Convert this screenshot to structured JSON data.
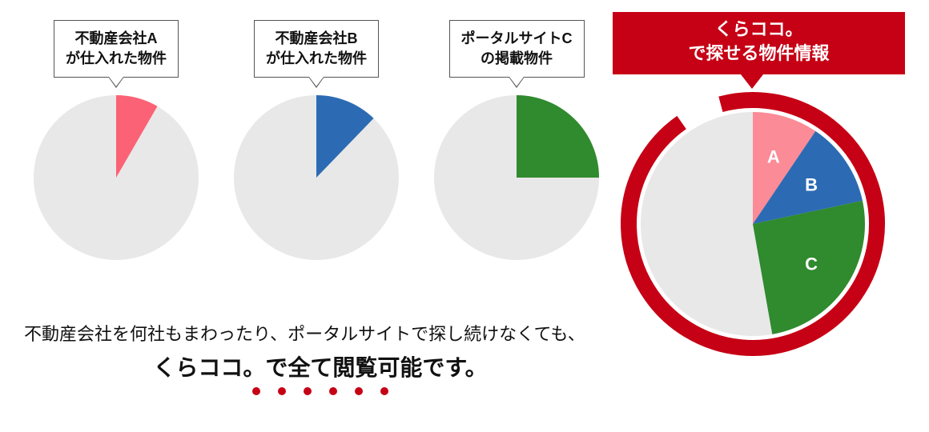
{
  "background_color": "#ffffff",
  "text_color": "#111111",
  "small_pies": [
    {
      "callout_line1": "不動産会社A",
      "callout_line2": "が仕入れた物件",
      "type": "pie",
      "radius": 103,
      "bg_color": "#e8e8e8",
      "slice_color": "#fb6275",
      "start_deg": 0,
      "sweep_deg": 30
    },
    {
      "callout_line1": "不動産会社B",
      "callout_line2": "が仕入れた物件",
      "type": "pie",
      "radius": 103,
      "bg_color": "#e8e8e8",
      "slice_color": "#2c6bb3",
      "start_deg": 0,
      "sweep_deg": 44
    },
    {
      "callout_line1": "ポータルサイトC",
      "callout_line2": "の掲載物件",
      "type": "pie",
      "radius": 103,
      "bg_color": "#e8e8e8",
      "slice_color": "#308a2e",
      "start_deg": 0,
      "sweep_deg": 90
    }
  ],
  "banner": {
    "bg_color": "#c60015",
    "text_color": "#ffffff",
    "line1": "くらココ。",
    "line2": "で探せる物件情報"
  },
  "big_pie": {
    "type": "pie-ring",
    "outer_radius": 165,
    "ring_width": 20,
    "inner_radius": 140,
    "bg_color": "#e8e8e8",
    "ring_color": "#c60015",
    "ring_gap_start_deg": -35,
    "ring_gap_end_deg": -15,
    "segments": [
      {
        "label": "A",
        "color": "#fb8b97",
        "start_deg": 0,
        "sweep_deg": 34
      },
      {
        "label": "B",
        "color": "#2c6bb3",
        "start_deg": 34,
        "sweep_deg": 44
      },
      {
        "label": "C",
        "color": "#308a2e",
        "start_deg": 78,
        "sweep_deg": 92
      }
    ]
  },
  "caption": {
    "line1": "不動産会社を何社もまわったり、ポータルサイトで探し続けなくても、",
    "line2": "くらココ。で全て閲覧可能です。",
    "dot_color": "#c60015",
    "dot_count": 6
  }
}
